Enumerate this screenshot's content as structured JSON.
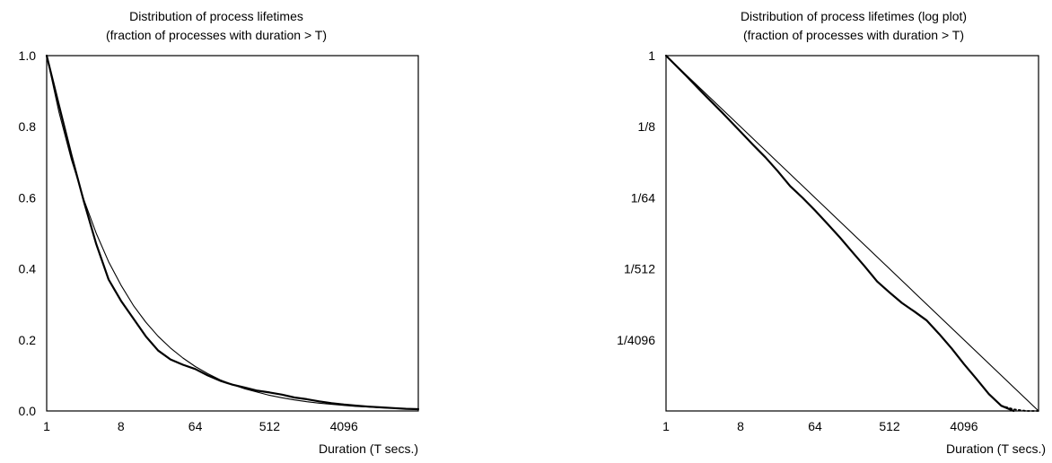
{
  "chart_data": [
    {
      "type": "line",
      "title": "Distribution of process lifetimes",
      "subtitle": "(fraction of processes with duration > T)",
      "xlabel": "Duration (T secs.)",
      "ylabel": "",
      "x_scale": "log2",
      "y_scale": "linear",
      "xlim": [
        1,
        32768
      ],
      "ylim": [
        0,
        1
      ],
      "x_ticks": [
        1,
        8,
        64,
        512,
        4096
      ],
      "x_tick_labels": [
        "1",
        "8",
        "64",
        "512",
        "4096"
      ],
      "y_ticks": [
        0,
        0.2,
        0.4,
        0.6,
        0.8,
        1.0
      ],
      "y_tick_labels": [
        "0.0",
        "0.2",
        "0.4",
        "0.6",
        "0.8",
        "1.0"
      ],
      "grid": false,
      "series": [
        {
          "style": "smooth",
          "x": [
            1,
            1.41,
            2,
            2.83,
            4,
            5.66,
            8,
            11.3,
            16,
            22.6,
            32,
            45.3,
            64,
            90.5,
            128,
            181,
            256,
            362,
            512,
            724,
            1024,
            1448,
            2048,
            2896,
            4096,
            5793,
            8192,
            11585,
            16384,
            23170,
            32768
          ],
          "y": [
            1.0,
            0.841,
            0.707,
            0.595,
            0.5,
            0.42,
            0.354,
            0.297,
            0.25,
            0.21,
            0.177,
            0.149,
            0.125,
            0.105,
            0.088,
            0.074,
            0.0625,
            0.053,
            0.044,
            0.037,
            0.031,
            0.026,
            0.022,
            0.0186,
            0.0156,
            0.013,
            0.011,
            0.0092,
            0.0078,
            0.0066,
            0.0055
          ]
        },
        {
          "style": "measured",
          "x": [
            1,
            1.41,
            2,
            2.83,
            4,
            5.66,
            8,
            11.3,
            16,
            22.6,
            32,
            45.3,
            64,
            90.5,
            128,
            181,
            256,
            362,
            512,
            724,
            1024,
            1448,
            2048,
            2896,
            4096,
            5793,
            8192,
            11585,
            16384,
            23170,
            32768
          ],
          "y": [
            1.0,
            0.86,
            0.72,
            0.59,
            0.47,
            0.37,
            0.31,
            0.26,
            0.21,
            0.17,
            0.145,
            0.13,
            0.118,
            0.1,
            0.085,
            0.074,
            0.066,
            0.057,
            0.052,
            0.046,
            0.038,
            0.033,
            0.027,
            0.022,
            0.018,
            0.015,
            0.012,
            0.01,
            0.008,
            0.006,
            0.005
          ]
        }
      ]
    },
    {
      "type": "line",
      "title": "Distribution of process lifetimes (log plot)",
      "subtitle": "(fraction of processes with duration > T)",
      "xlabel": "Duration (T secs.)",
      "ylabel": "",
      "x_scale": "log2",
      "y_scale": "log2",
      "xlim": [
        1,
        32768
      ],
      "ylim": [
        3.05e-05,
        1
      ],
      "x_ticks": [
        1,
        8,
        64,
        512,
        4096
      ],
      "x_tick_labels": [
        "1",
        "8",
        "64",
        "512",
        "4096"
      ],
      "y_ticks": [
        1,
        0.125,
        0.015625,
        0.001953125,
        0.000244140625
      ],
      "y_tick_labels": [
        "1",
        "1/8",
        "1/64",
        "1/512",
        "1/4096"
      ],
      "grid": false,
      "series": [
        {
          "style": "reference",
          "x": [
            1,
            32768
          ],
          "y": [
            1,
            3.05e-05
          ]
        },
        {
          "style": "measured",
          "x": [
            1,
            1.68,
            2.83,
            4.76,
            8,
            11.3,
            16,
            22.6,
            32,
            45.3,
            64,
            90.5,
            128,
            181,
            256,
            362,
            512,
            724,
            1024,
            1448,
            2048,
            2896,
            4096,
            5793,
            8192,
            11585,
            16384
          ],
          "y": [
            1,
            0.58,
            0.33,
            0.19,
            0.108,
            0.074,
            0.051,
            0.034,
            0.022,
            0.0156,
            0.0108,
            0.0073,
            0.0049,
            0.0032,
            0.0021,
            0.00135,
            0.00098,
            0.00072,
            0.00056,
            0.00043,
            0.00029,
            0.00019,
            0.00012,
            7.8e-05,
            5e-05,
            3.55e-05,
            3.05e-05
          ]
        },
        {
          "style": "dotted",
          "x": [
            11585,
            16384,
            23170,
            32768
          ],
          "y": [
            3.55e-05,
            3.2e-05,
            3.05e-05,
            3.05e-05
          ]
        }
      ]
    }
  ]
}
